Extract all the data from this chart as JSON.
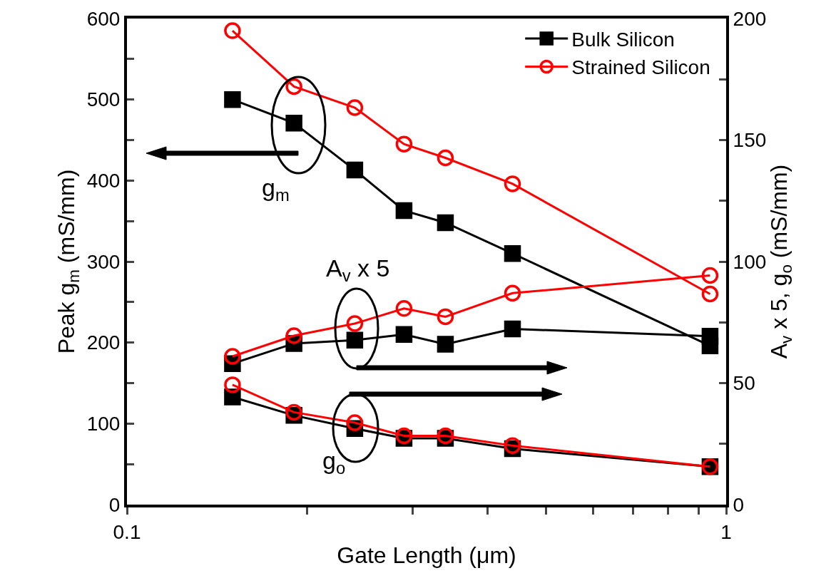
{
  "chart_data": {
    "type": "line",
    "xlabel": "Gate Length (μm)",
    "ylabel": "Peak g$_{m}$ (mS/mm)",
    "y2label": "A$_{v}$ x 5, g$_{o}$ (mS/mm)",
    "x": [
      0.15,
      0.19,
      0.24,
      0.29,
      0.34,
      0.44,
      0.94
    ],
    "log": "x",
    "legend": "top right",
    "line_style": "solid",
    "xlim": [
      0.1,
      1
    ],
    "xticks": [
      0.1,
      {
        "value": 0.2,
        "label": null
      },
      {
        "value": 0.3,
        "label": null
      },
      {
        "value": 0.4,
        "label": null
      },
      {
        "value": 0.5,
        "label": null
      },
      {
        "value": 0.6,
        "label": null
      },
      {
        "value": 0.7,
        "label": null
      },
      {
        "value": 0.8,
        "label": null
      },
      {
        "value": 0.9,
        "label": null
      },
      1
    ],
    "ylim": [
      0,
      600
    ],
    "yticks": [
      0,
      {
        "value": 50,
        "label": null
      },
      100,
      {
        "value": 150,
        "label": null
      },
      200,
      {
        "value": 250,
        "label": null
      },
      300,
      {
        "value": 350,
        "label": null
      },
      400,
      {
        "value": 450,
        "label": null
      },
      500,
      {
        "value": 550,
        "label": null
      },
      600
    ],
    "y2lim": [
      0,
      200
    ],
    "y2ticks": [
      0,
      {
        "value": 25,
        "label": null
      },
      50,
      {
        "value": 75,
        "label": null
      },
      100,
      {
        "value": 125,
        "label": null
      },
      150,
      {
        "value": 175,
        "label": null
      },
      200
    ],
    "series": [
      {
        "name": "Bulk Silicon",
        "color": "#000000",
        "marker": "square",
        "values": [
          500,
          471,
          413,
          363,
          348,
          310,
          196
        ]
      },
      {
        "name": "Strained Silicon",
        "color": "#ff0000",
        "marker": "circle",
        "values": [
          585,
          516,
          490,
          445,
          428,
          396,
          260
        ]
      },
      {
        "color": "#000000",
        "marker": "square",
        "axis": "y2",
        "values": [
          58,
          66.3,
          67.7,
          70,
          66,
          72.3,
          69.3
        ]
      },
      {
        "color": "#ff0000",
        "marker": "circle",
        "axis": "y2",
        "values": [
          61,
          69.5,
          74.5,
          80.7,
          77.3,
          87,
          94.3
        ]
      },
      {
        "color": "#000000",
        "marker": "square",
        "axis": "y2",
        "values": [
          44.3,
          36.7,
          31.3,
          27.3,
          27.3,
          23,
          15.6
        ]
      },
      {
        "color": "#ff0000",
        "marker": "circle",
        "axis": "y2",
        "values": [
          49.3,
          38,
          33.7,
          28.3,
          28.3,
          24.3,
          15.6
        ]
      }
    ],
    "annotations": [
      "g$_{m}$",
      "A$_{v}$ x 5",
      "g$_{o}$"
    ]
  }
}
